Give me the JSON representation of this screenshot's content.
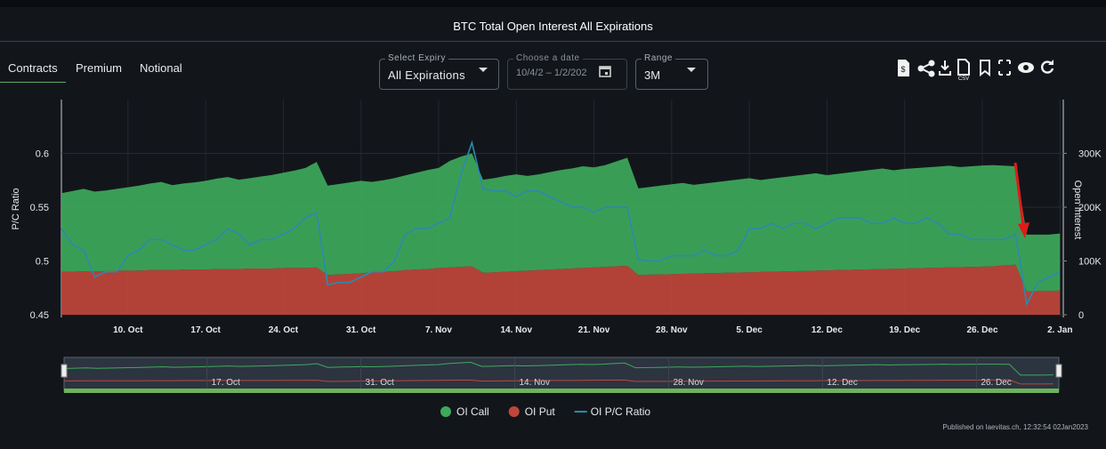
{
  "header": {
    "title": "BTC Total Open Interest All Expirations"
  },
  "tabs": [
    "Contracts",
    "Premium",
    "Notional"
  ],
  "controls": {
    "expiry_label": "Select Expiry",
    "expiry_value": "All Expirations",
    "date_label": "Choose a date",
    "date_value": "10/4/2 – 1/2/202",
    "range_label": "Range",
    "range_value": "3M"
  },
  "toolbar": {
    "csv_label": "CSV"
  },
  "chart_data": {
    "type": "area",
    "y_label": "P/C Ratio",
    "y2_label": "Open Interest",
    "categories": [
      null,
      null,
      null,
      null,
      null,
      null,
      "10. Oct",
      null,
      null,
      null,
      null,
      null,
      null,
      "17. Oct",
      null,
      null,
      null,
      null,
      null,
      null,
      "24. Oct",
      null,
      null,
      null,
      null,
      null,
      null,
      "31. Oct",
      null,
      null,
      null,
      null,
      null,
      null,
      "7. Nov",
      null,
      null,
      null,
      null,
      null,
      null,
      "14. Nov",
      null,
      null,
      null,
      null,
      null,
      null,
      "21. Nov",
      null,
      null,
      null,
      null,
      null,
      null,
      "28. Nov",
      null,
      null,
      null,
      null,
      null,
      null,
      "5. Dec",
      null,
      null,
      null,
      null,
      null,
      null,
      "12. Dec",
      null,
      null,
      null,
      null,
      null,
      null,
      "19. Dec",
      null,
      null,
      null,
      null,
      null,
      null,
      "26. Dec",
      null,
      null,
      null,
      null,
      null,
      null,
      "2. Jan"
    ],
    "series": [
      {
        "name": "OI Call",
        "color": "#3ea95b",
        "axis": "y2",
        "values": [
          146000,
          150000,
          153000,
          148000,
          150000,
          152000,
          155000,
          158000,
          161000,
          164000,
          158000,
          160000,
          162000,
          165000,
          168000,
          171000,
          166000,
          168000,
          171000,
          174000,
          177000,
          181000,
          186000,
          196000,
          166000,
          168000,
          170000,
          172000,
          168000,
          170000,
          173000,
          176000,
          180000,
          184000,
          186000,
          198000,
          205000,
          210000,
          173000,
          175000,
          178000,
          180000,
          176000,
          178000,
          181000,
          184000,
          186000,
          189000,
          186000,
          189000,
          195000,
          201000,
          161000,
          163000,
          165000,
          167000,
          169000,
          165000,
          167000,
          169000,
          171000,
          173000,
          175000,
          171000,
          173000,
          175000,
          177000,
          179000,
          181000,
          177000,
          179000,
          181000,
          183000,
          185000,
          187000,
          183000,
          185000,
          186000,
          187000,
          188000,
          189000,
          186000,
          187000,
          188000,
          188000,
          185000,
          183000,
          106000,
          105000,
          105000,
          106000
        ]
      },
      {
        "name": "OI Put",
        "color": "#c0463b",
        "axis": "y2",
        "values": [
          80000,
          80000,
          81000,
          81000,
          81000,
          82000,
          82000,
          82000,
          83000,
          83000,
          83000,
          84000,
          84000,
          84000,
          85000,
          85000,
          85000,
          86000,
          86000,
          86000,
          87000,
          87000,
          87000,
          88000,
          74000,
          75000,
          76000,
          77000,
          79000,
          80000,
          81000,
          83000,
          84000,
          85000,
          87000,
          88000,
          89000,
          90000,
          78000,
          79000,
          80000,
          81000,
          82000,
          83000,
          84000,
          85000,
          86000,
          87000,
          88000,
          89000,
          90000,
          91000,
          74000,
          74500,
          75000,
          75500,
          76000,
          76500,
          77000,
          77500,
          78000,
          78500,
          79000,
          79500,
          80000,
          80500,
          81000,
          81500,
          82000,
          82500,
          83000,
          83500,
          84000,
          84500,
          85000,
          85500,
          86000,
          86500,
          87000,
          87500,
          88000,
          88500,
          89000,
          89500,
          90000,
          92000,
          93000,
          43000,
          44000,
          44000,
          45000
        ]
      },
      {
        "name": "OI P/C Ratio",
        "color": "#2a8ab0",
        "type": "line",
        "values": [
          0.53,
          0.515,
          0.51,
          0.485,
          0.49,
          0.49,
          0.505,
          0.51,
          0.52,
          0.52,
          0.515,
          0.51,
          0.51,
          0.515,
          0.52,
          0.53,
          0.525,
          0.515,
          0.52,
          0.52,
          0.525,
          0.53,
          0.54,
          0.545,
          0.478,
          0.48,
          0.48,
          0.485,
          0.49,
          0.49,
          0.5,
          0.525,
          0.53,
          0.53,
          0.535,
          0.54,
          0.58,
          0.61,
          0.567,
          0.565,
          0.565,
          0.56,
          0.565,
          0.565,
          0.56,
          0.555,
          0.55,
          0.55,
          0.545,
          0.55,
          0.55,
          0.55,
          0.501,
          0.5,
          0.5,
          0.505,
          0.505,
          0.505,
          0.51,
          0.505,
          0.505,
          0.51,
          0.53,
          0.53,
          0.535,
          0.53,
          0.535,
          0.535,
          0.53,
          0.535,
          0.54,
          0.54,
          0.54,
          0.535,
          0.535,
          0.54,
          0.535,
          0.535,
          0.54,
          0.535,
          0.525,
          0.525,
          0.52,
          0.52,
          0.52,
          0.52,
          0.525,
          0.46,
          0.48,
          0.485,
          0.49
        ]
      }
    ],
    "ylim": [
      0.45,
      0.65
    ],
    "yticks": [
      0.45,
      0.5,
      0.55,
      0.6
    ],
    "y2lim": [
      0,
      400000
    ],
    "y2ticks": [
      0,
      {
        "value": 100000,
        "label": "100K"
      },
      {
        "value": 200000,
        "label": "200K"
      },
      {
        "value": 300000,
        "label": "300K"
      }
    ],
    "grid": true,
    "legend": "bottom"
  },
  "footer": {
    "published": "Published on laevitas.ch, 12:32:54 02Jan2023"
  }
}
